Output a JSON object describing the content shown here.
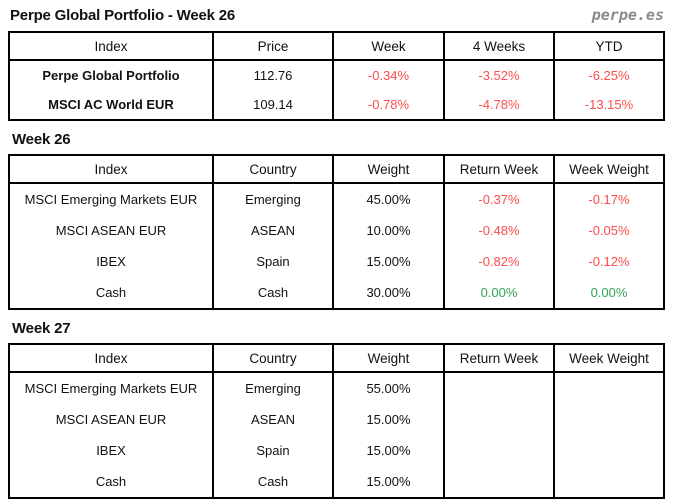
{
  "page": {
    "title": "Perpe Global Portfolio - Week 26",
    "logo": "perpe.es"
  },
  "colors": {
    "negative": "#ff4c4c",
    "zero_green": "#33a453",
    "logo_gray": "#8a8a8a",
    "border": "#000000",
    "text": "#111111"
  },
  "performance_table": {
    "headers": [
      "Index",
      "Price",
      "Week",
      "4 Weeks",
      "YTD"
    ],
    "rows": [
      {
        "index": "Perpe Global Portfolio",
        "price": "112.76",
        "week": "-0.34%",
        "four_weeks": "-3.52%",
        "ytd": "-6.25%"
      },
      {
        "index": "MSCI AC World EUR",
        "price": "109.14",
        "week": "-0.78%",
        "four_weeks": "-4.78%",
        "ytd": "-13.15%"
      }
    ]
  },
  "week26": {
    "heading": "Week 26",
    "headers": [
      "Index",
      "Country",
      "Weight",
      "Return Week",
      "Week Weight"
    ],
    "rows": [
      {
        "index": "MSCI Emerging Markets EUR",
        "country": "Emerging",
        "weight": "45.00%",
        "return_week": "-0.37%",
        "week_weight": "-0.17%"
      },
      {
        "index": "MSCI ASEAN EUR",
        "country": "ASEAN",
        "weight": "10.00%",
        "return_week": "-0.48%",
        "week_weight": "-0.05%"
      },
      {
        "index": "IBEX",
        "country": "Spain",
        "weight": "15.00%",
        "return_week": "-0.82%",
        "week_weight": "-0.12%"
      },
      {
        "index": "Cash",
        "country": "Cash",
        "weight": "30.00%",
        "return_week": "0.00%",
        "week_weight": "0.00%"
      }
    ]
  },
  "week27": {
    "heading": "Week 27",
    "headers": [
      "Index",
      "Country",
      "Weight",
      "Return Week",
      "Week Weight"
    ],
    "rows": [
      {
        "index": "MSCI Emerging Markets EUR",
        "country": "Emerging",
        "weight": "55.00%",
        "return_week": "",
        "week_weight": ""
      },
      {
        "index": "MSCI ASEAN EUR",
        "country": "ASEAN",
        "weight": "15.00%",
        "return_week": "",
        "week_weight": ""
      },
      {
        "index": "IBEX",
        "country": "Spain",
        "weight": "15.00%",
        "return_week": "",
        "week_weight": ""
      },
      {
        "index": "Cash",
        "country": "Cash",
        "weight": "15.00%",
        "return_week": "",
        "week_weight": ""
      }
    ]
  }
}
